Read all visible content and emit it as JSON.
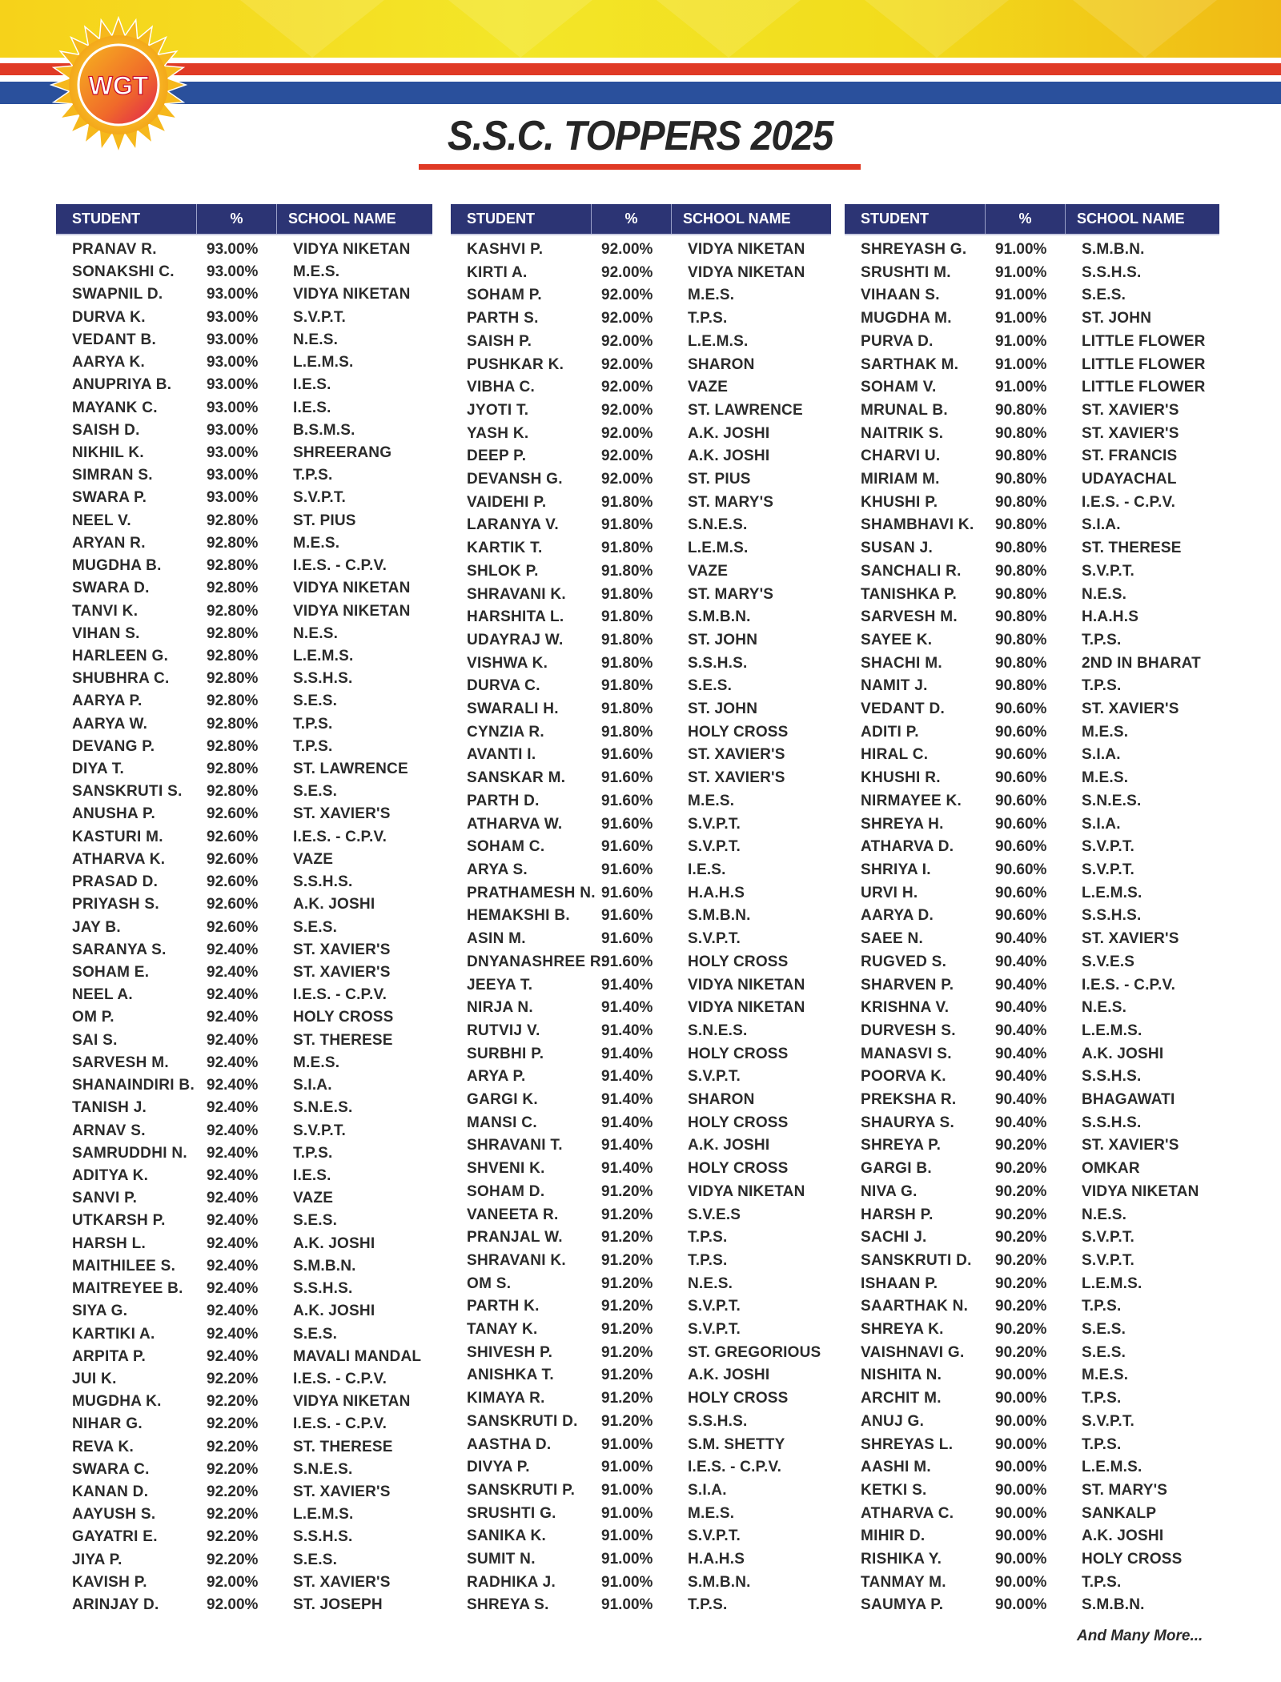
{
  "logo_text": "WGT",
  "title": "S.S.C. TOPPERS 2025",
  "colors": {
    "yellow": "#f3e028",
    "red": "#e03a25",
    "blue": "#2a509c",
    "header_navy": "#2c3474"
  },
  "columns": {
    "student": "STUDENT",
    "percent": "%",
    "school": "SCHOOL NAME"
  },
  "footer": "And Many More...",
  "tables": [
    [
      [
        "PRANAV R.",
        "93.00%",
        "VIDYA NIKETAN"
      ],
      [
        "SONAKSHI C.",
        "93.00%",
        "M.E.S."
      ],
      [
        "SWAPNIL D.",
        "93.00%",
        "VIDYA NIKETAN"
      ],
      [
        "DURVA K.",
        "93.00%",
        "S.V.P.T."
      ],
      [
        "VEDANT B.",
        "93.00%",
        "N.E.S."
      ],
      [
        "AARYA K.",
        "93.00%",
        "L.E.M.S."
      ],
      [
        "ANUPRIYA B.",
        "93.00%",
        "I.E.S."
      ],
      [
        "MAYANK C.",
        "93.00%",
        "I.E.S."
      ],
      [
        "SAISH D.",
        "93.00%",
        "B.S.M.S."
      ],
      [
        "NIKHIL K.",
        "93.00%",
        "SHREERANG"
      ],
      [
        "SIMRAN S.",
        "93.00%",
        "T.P.S."
      ],
      [
        "SWARA P.",
        "93.00%",
        "S.V.P.T."
      ],
      [
        "NEEL V.",
        "92.80%",
        "ST. PIUS"
      ],
      [
        "ARYAN R.",
        "92.80%",
        "M.E.S."
      ],
      [
        "MUGDHA B.",
        "92.80%",
        "I.E.S. - C.P.V."
      ],
      [
        "SWARA D.",
        "92.80%",
        "VIDYA NIKETAN"
      ],
      [
        "TANVI K.",
        "92.80%",
        "VIDYA NIKETAN"
      ],
      [
        "VIHAN S.",
        "92.80%",
        "N.E.S."
      ],
      [
        "HARLEEN G.",
        "92.80%",
        "L.E.M.S."
      ],
      [
        "SHUBHRA C.",
        "92.80%",
        "S.S.H.S."
      ],
      [
        "AARYA P.",
        "92.80%",
        "S.E.S."
      ],
      [
        "AARYA W.",
        "92.80%",
        "T.P.S."
      ],
      [
        "DEVANG P.",
        "92.80%",
        "T.P.S."
      ],
      [
        "DIYA T.",
        "92.80%",
        "ST. LAWRENCE"
      ],
      [
        "SANSKRUTI S.",
        "92.80%",
        "S.E.S."
      ],
      [
        "ANUSHA P.",
        "92.60%",
        "ST. XAVIER'S"
      ],
      [
        "KASTURI M.",
        "92.60%",
        "I.E.S. - C.P.V."
      ],
      [
        "ATHARVA K.",
        "92.60%",
        "VAZE"
      ],
      [
        "PRASAD D.",
        "92.60%",
        "S.S.H.S."
      ],
      [
        "PRIYASH S.",
        "92.60%",
        "A.K. JOSHI"
      ],
      [
        "JAY B.",
        "92.60%",
        "S.E.S."
      ],
      [
        "SARANYA S.",
        "92.40%",
        "ST. XAVIER'S"
      ],
      [
        "SOHAM E.",
        "92.40%",
        "ST. XAVIER'S"
      ],
      [
        "NEEL A.",
        "92.40%",
        "I.E.S. - C.P.V."
      ],
      [
        "OM P.",
        "92.40%",
        "HOLY CROSS"
      ],
      [
        "SAI S.",
        "92.40%",
        "ST. THERESE"
      ],
      [
        "SARVESH M.",
        "92.40%",
        "M.E.S."
      ],
      [
        "SHANAINDIRI B.",
        "92.40%",
        "S.I.A."
      ],
      [
        "TANISH J.",
        "92.40%",
        "S.N.E.S."
      ],
      [
        "ARNAV S.",
        "92.40%",
        "S.V.P.T."
      ],
      [
        "SAMRUDDHI N.",
        "92.40%",
        "T.P.S."
      ],
      [
        "ADITYA K.",
        "92.40%",
        "I.E.S."
      ],
      [
        "SANVI P.",
        "92.40%",
        "VAZE"
      ],
      [
        "UTKARSH P.",
        "92.40%",
        "S.E.S."
      ],
      [
        "HARSH L.",
        "92.40%",
        "A.K. JOSHI"
      ],
      [
        "MAITHILEE S.",
        "92.40%",
        "S.M.B.N."
      ],
      [
        "MAITREYEE B.",
        "92.40%",
        "S.S.H.S."
      ],
      [
        "SIYA G.",
        "92.40%",
        "A.K. JOSHI"
      ],
      [
        "KARTIKI A.",
        "92.40%",
        "S.E.S."
      ],
      [
        "ARPITA P.",
        "92.40%",
        "MAVALI MANDAL"
      ],
      [
        "JUI K.",
        "92.20%",
        "I.E.S. - C.P.V."
      ],
      [
        "MUGDHA K.",
        "92.20%",
        "VIDYA NIKETAN"
      ],
      [
        "NIHAR G.",
        "92.20%",
        "I.E.S. - C.P.V."
      ],
      [
        "REVA K.",
        "92.20%",
        "ST. THERESE"
      ],
      [
        "SWARA C.",
        "92.20%",
        "S.N.E.S."
      ],
      [
        "KANAN D.",
        "92.20%",
        "ST. XAVIER'S"
      ],
      [
        "AAYUSH S.",
        "92.20%",
        "L.E.M.S."
      ],
      [
        "GAYATRI E.",
        "92.20%",
        "S.S.H.S."
      ],
      [
        "JIYA P.",
        "92.20%",
        "S.E.S."
      ],
      [
        "KAVISH P.",
        "92.00%",
        "ST. XAVIER'S"
      ],
      [
        "ARINJAY D.",
        "92.00%",
        "ST. JOSEPH"
      ]
    ],
    [
      [
        "KASHVI P.",
        "92.00%",
        "VIDYA NIKETAN"
      ],
      [
        "KIRTI A.",
        "92.00%",
        "VIDYA NIKETAN"
      ],
      [
        "SOHAM P.",
        "92.00%",
        "M.E.S."
      ],
      [
        "PARTH S.",
        "92.00%",
        "T.P.S."
      ],
      [
        "SAISH P.",
        "92.00%",
        "L.E.M.S."
      ],
      [
        "PUSHKAR K.",
        "92.00%",
        "SHARON"
      ],
      [
        "VIBHA C.",
        "92.00%",
        "VAZE"
      ],
      [
        "JYOTI T.",
        "92.00%",
        "ST. LAWRENCE"
      ],
      [
        "YASH K.",
        "92.00%",
        "A.K. JOSHI"
      ],
      [
        "DEEP P.",
        "92.00%",
        "A.K. JOSHI"
      ],
      [
        "DEVANSH G.",
        "92.00%",
        "ST. PIUS"
      ],
      [
        "VAIDEHI P.",
        "91.80%",
        "ST. MARY'S"
      ],
      [
        "LARANYA V.",
        "91.80%",
        "S.N.E.S."
      ],
      [
        "KARTIK T.",
        "91.80%",
        "L.E.M.S."
      ],
      [
        "SHLOK P.",
        "91.80%",
        "VAZE"
      ],
      [
        "SHRAVANI K.",
        "91.80%",
        "ST. MARY'S"
      ],
      [
        "HARSHITA L.",
        "91.80%",
        "S.M.B.N."
      ],
      [
        "UDAYRAJ W.",
        "91.80%",
        "ST. JOHN"
      ],
      [
        "VISHWA K.",
        "91.80%",
        "S.S.H.S."
      ],
      [
        "DURVA C.",
        "91.80%",
        "S.E.S."
      ],
      [
        "SWARALI H.",
        "91.80%",
        "ST. JOHN"
      ],
      [
        "CYNZIA R.",
        "91.80%",
        "HOLY CROSS"
      ],
      [
        "AVANTI I.",
        "91.60%",
        "ST. XAVIER'S"
      ],
      [
        "SANSKAR M.",
        "91.60%",
        "ST. XAVIER'S"
      ],
      [
        "PARTH D.",
        "91.60%",
        "M.E.S."
      ],
      [
        "ATHARVA W.",
        "91.60%",
        "S.V.P.T."
      ],
      [
        "SOHAM C.",
        "91.60%",
        "S.V.P.T."
      ],
      [
        "ARYA S.",
        "91.60%",
        "I.E.S."
      ],
      [
        "PRATHAMESH N.",
        "91.60%",
        "H.A.H.S"
      ],
      [
        "HEMAKSHI B.",
        "91.60%",
        "S.M.B.N."
      ],
      [
        "ASIN M.",
        "91.60%",
        "S.V.P.T."
      ],
      [
        "DNYANASHREE R.",
        "91.60%",
        "HOLY CROSS"
      ],
      [
        "JEEYA T.",
        "91.40%",
        "VIDYA NIKETAN"
      ],
      [
        "NIRJA N.",
        "91.40%",
        "VIDYA NIKETAN"
      ],
      [
        "RUTVIJ V.",
        "91.40%",
        "S.N.E.S."
      ],
      [
        "SURBHI P.",
        "91.40%",
        "HOLY CROSS"
      ],
      [
        "ARYA P.",
        "91.40%",
        "S.V.P.T."
      ],
      [
        "GARGI K.",
        "91.40%",
        "SHARON"
      ],
      [
        "MANSI C.",
        "91.40%",
        "HOLY CROSS"
      ],
      [
        "SHRAVANI T.",
        "91.40%",
        "A.K. JOSHI"
      ],
      [
        "SHVENI K.",
        "91.40%",
        "HOLY CROSS"
      ],
      [
        "SOHAM D.",
        "91.20%",
        "VIDYA NIKETAN"
      ],
      [
        "VANEETA R.",
        "91.20%",
        "S.V.E.S"
      ],
      [
        "PRANJAL W.",
        "91.20%",
        "T.P.S."
      ],
      [
        "SHRAVANI K.",
        "91.20%",
        "T.P.S."
      ],
      [
        "OM S.",
        "91.20%",
        "N.E.S."
      ],
      [
        "PARTH K.",
        "91.20%",
        "S.V.P.T."
      ],
      [
        "TANAY K.",
        "91.20%",
        "S.V.P.T."
      ],
      [
        "SHIVESH P.",
        "91.20%",
        "ST. GREGORIOUS"
      ],
      [
        "ANISHKA T.",
        "91.20%",
        "A.K. JOSHI"
      ],
      [
        "KIMAYA R.",
        "91.20%",
        "HOLY CROSS"
      ],
      [
        "SANSKRUTI D.",
        "91.20%",
        "S.S.H.S."
      ],
      [
        "AASTHA D.",
        "91.00%",
        "S.M. SHETTY"
      ],
      [
        "DIVYA P.",
        "91.00%",
        "I.E.S. - C.P.V."
      ],
      [
        "SANSKRUTI P.",
        "91.00%",
        "S.I.A."
      ],
      [
        "SRUSHTI G.",
        "91.00%",
        "M.E.S."
      ],
      [
        "SANIKA K.",
        "91.00%",
        "S.V.P.T."
      ],
      [
        "SUMIT N.",
        "91.00%",
        "H.A.H.S"
      ],
      [
        "RADHIKA J.",
        "91.00%",
        "S.M.B.N."
      ],
      [
        "SHREYA S.",
        "91.00%",
        "T.P.S."
      ]
    ],
    [
      [
        "SHREYASH G.",
        "91.00%",
        "S.M.B.N."
      ],
      [
        "SRUSHTI M.",
        "91.00%",
        "S.S.H.S."
      ],
      [
        "VIHAAN S.",
        "91.00%",
        "S.E.S."
      ],
      [
        "MUGDHA M.",
        "91.00%",
        "ST. JOHN"
      ],
      [
        "PURVA D.",
        "91.00%",
        "LITTLE FLOWER"
      ],
      [
        "SARTHAK M.",
        "91.00%",
        "LITTLE FLOWER"
      ],
      [
        "SOHAM V.",
        "91.00%",
        "LITTLE FLOWER"
      ],
      [
        "MRUNAL B.",
        "90.80%",
        "ST. XAVIER'S"
      ],
      [
        "NAITRIK S.",
        "90.80%",
        "ST. XAVIER'S"
      ],
      [
        "CHARVI U.",
        "90.80%",
        "ST. FRANCIS"
      ],
      [
        "MIRIAM M.",
        "90.80%",
        "UDAYACHAL"
      ],
      [
        "KHUSHI P.",
        "90.80%",
        "I.E.S. - C.P.V."
      ],
      [
        "SHAMBHAVI K.",
        "90.80%",
        "S.I.A."
      ],
      [
        "SUSAN J.",
        "90.80%",
        "ST. THERESE"
      ],
      [
        "SANCHALI R.",
        "90.80%",
        "S.V.P.T."
      ],
      [
        "TANISHKA P.",
        "90.80%",
        "N.E.S."
      ],
      [
        "SARVESH M.",
        "90.80%",
        "H.A.H.S"
      ],
      [
        "SAYEE K.",
        "90.80%",
        "T.P.S."
      ],
      [
        "SHACHI M.",
        "90.80%",
        "2ND IN BHARAT"
      ],
      [
        "NAMIT J.",
        "90.80%",
        "T.P.S."
      ],
      [
        "VEDANT D.",
        "90.60%",
        "ST. XAVIER'S"
      ],
      [
        "ADITI P.",
        "90.60%",
        "M.E.S."
      ],
      [
        "HIRAL C.",
        "90.60%",
        "S.I.A."
      ],
      [
        "KHUSHI R.",
        "90.60%",
        "M.E.S."
      ],
      [
        "NIRMAYEE K.",
        "90.60%",
        "S.N.E.S."
      ],
      [
        "SHREYA H.",
        "90.60%",
        "S.I.A."
      ],
      [
        "ATHARVA D.",
        "90.60%",
        "S.V.P.T."
      ],
      [
        "SHRIYA I.",
        "90.60%",
        "S.V.P.T."
      ],
      [
        "URVI H.",
        "90.60%",
        "L.E.M.S."
      ],
      [
        "AARYA D.",
        "90.60%",
        "S.S.H.S."
      ],
      [
        "SAEE N.",
        "90.40%",
        "ST. XAVIER'S"
      ],
      [
        "RUGVED S.",
        "90.40%",
        "S.V.E.S"
      ],
      [
        "SHARVEN P.",
        "90.40%",
        "I.E.S. - C.P.V."
      ],
      [
        "KRISHNA V.",
        "90.40%",
        "N.E.S."
      ],
      [
        "DURVESH S.",
        "90.40%",
        "L.E.M.S."
      ],
      [
        "MANASVI S.",
        "90.40%",
        "A.K. JOSHI"
      ],
      [
        "POORVA K.",
        "90.40%",
        "S.S.H.S."
      ],
      [
        "PREKSHA R.",
        "90.40%",
        "BHAGAWATI"
      ],
      [
        "SHAURYA S.",
        "90.40%",
        "S.S.H.S."
      ],
      [
        "SHREYA P.",
        "90.20%",
        "ST. XAVIER'S"
      ],
      [
        "GARGI B.",
        "90.20%",
        "OMKAR"
      ],
      [
        "NIVA G.",
        "90.20%",
        "VIDYA NIKETAN"
      ],
      [
        "HARSH P.",
        "90.20%",
        "N.E.S."
      ],
      [
        "SACHI J.",
        "90.20%",
        "S.V.P.T."
      ],
      [
        "SANSKRUTI D.",
        "90.20%",
        "S.V.P.T."
      ],
      [
        "ISHAAN P.",
        "90.20%",
        "L.E.M.S."
      ],
      [
        "SAARTHAK N.",
        "90.20%",
        "T.P.S."
      ],
      [
        "SHREYA K.",
        "90.20%",
        "S.E.S."
      ],
      [
        "VAISHNAVI G.",
        "90.20%",
        "S.E.S."
      ],
      [
        "NISHITA N.",
        "90.00%",
        "M.E.S."
      ],
      [
        "ARCHIT M.",
        "90.00%",
        "T.P.S."
      ],
      [
        "ANUJ G.",
        "90.00%",
        "S.V.P.T."
      ],
      [
        "SHREYAS L.",
        "90.00%",
        "T.P.S."
      ],
      [
        "AASHI M.",
        "90.00%",
        "L.E.M.S."
      ],
      [
        "KETKI S.",
        "90.00%",
        "ST. MARY'S"
      ],
      [
        "ATHARVA C.",
        "90.00%",
        "SANKALP"
      ],
      [
        "MIHIR D.",
        "90.00%",
        "A.K. JOSHI"
      ],
      [
        "RISHIKA Y.",
        "90.00%",
        "HOLY CROSS"
      ],
      [
        "TANMAY M.",
        "90.00%",
        "T.P.S."
      ],
      [
        "SAUMYA P.",
        "90.00%",
        "S.M.B.N."
      ]
    ]
  ]
}
